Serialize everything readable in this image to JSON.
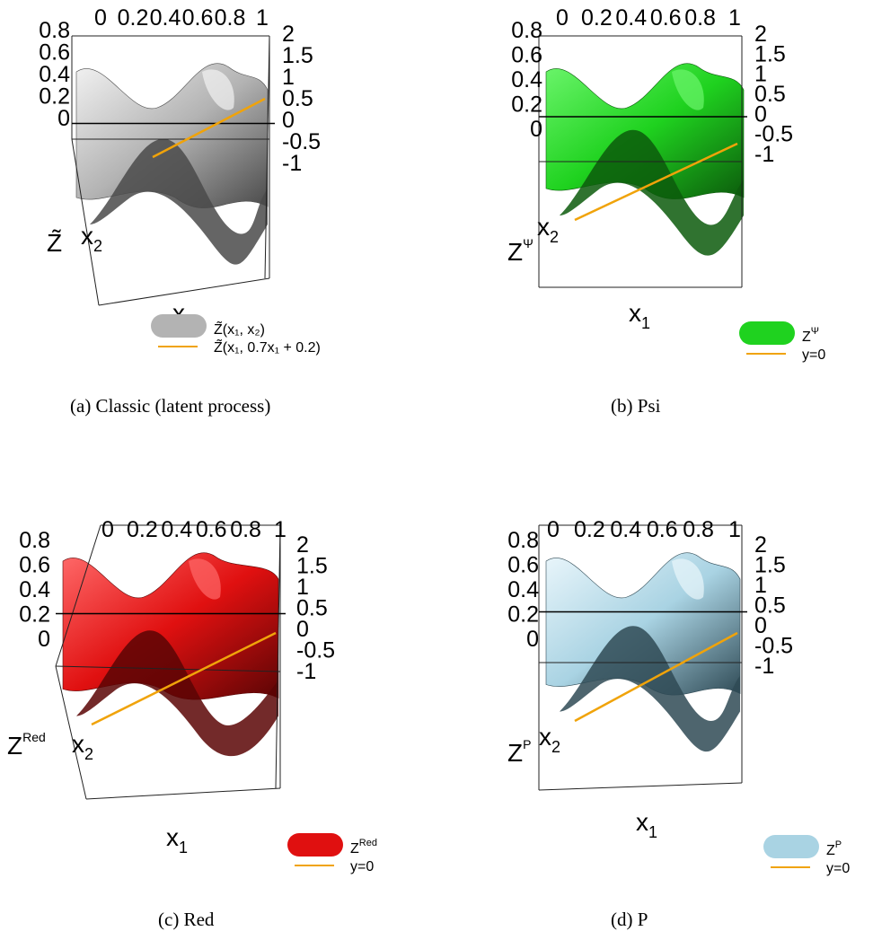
{
  "figure": {
    "panels": [
      {
        "id": "a",
        "caption": "(a) Classic (latent process)",
        "z_label": "Z̃",
        "z_label_sup": "",
        "x1_label": "x",
        "x1_sub": "1",
        "x2_label": "x",
        "x2_sub": "2",
        "surface_color": "#b3b3b3",
        "surface_dark": "#4a4a4a",
        "surface_light": "#f2f2f2",
        "line_color": "#f0a30a",
        "legend": [
          {
            "kind": "surface",
            "label": "Z̃(x₁, x₂)"
          },
          {
            "kind": "line",
            "label": "Z̃(x₁, 0.7x₁ + 0.2)"
          }
        ]
      },
      {
        "id": "b",
        "caption": "(b) Psi",
        "z_label": "Z",
        "z_label_sup": "Ψ",
        "x1_label": "x",
        "x1_sub": "1",
        "x2_label": "x",
        "x2_sub": "2",
        "surface_color": "#1fd21f",
        "surface_dark": "#0c5a0c",
        "surface_light": "#6cf56c",
        "line_color": "#f0a30a",
        "legend": [
          {
            "kind": "surface",
            "label": "Z",
            "sup": "Ψ"
          },
          {
            "kind": "line",
            "label": "y=0"
          }
        ]
      },
      {
        "id": "c",
        "caption": "(c) Red",
        "z_label": "Z",
        "z_label_sup": "Red",
        "x1_label": "x",
        "x1_sub": "1",
        "x2_label": "x",
        "x2_sub": "2",
        "surface_color": "#e01010",
        "surface_dark": "#5a0505",
        "surface_light": "#ff6a6a",
        "line_color": "#f0a30a",
        "legend": [
          {
            "kind": "surface",
            "label": "Z",
            "sup": "Red"
          },
          {
            "kind": "line",
            "label": "y=0"
          }
        ]
      },
      {
        "id": "d",
        "caption": "(d) P",
        "z_label": "Z",
        "z_label_sup": "P",
        "x1_label": "x",
        "x1_sub": "1",
        "x2_label": "x",
        "x2_sub": "2",
        "surface_color": "#a9d3e3",
        "surface_dark": "#2f4a55",
        "surface_light": "#eaf6fb",
        "line_color": "#f0a30a",
        "legend": [
          {
            "kind": "surface",
            "label": "Z",
            "sup": "P"
          },
          {
            "kind": "line",
            "label": "y=0"
          }
        ]
      }
    ],
    "top_ticks": [
      "0",
      "0.2",
      "0.4",
      "0.6",
      "0.8",
      "1"
    ],
    "left_ticks": [
      "0.8",
      "0.6",
      "0.4",
      "0.2",
      "0"
    ],
    "right_ticks": [
      "2",
      "1.5",
      "1",
      "0.5",
      "0",
      "-0.5",
      "-1"
    ]
  }
}
